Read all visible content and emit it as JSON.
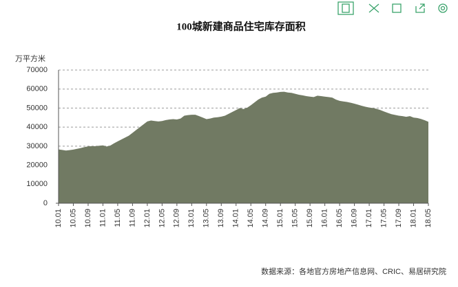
{
  "chart_data": {
    "type": "area",
    "title": "100城新建商品住宅库存面积",
    "y_label": "万平方米",
    "source": "数据来源：各地官方房地产信息网、CRIC、易居研究院",
    "color": "#717a63",
    "categories": [
      "10.01",
      null,
      null,
      null,
      "10.05",
      null,
      null,
      null,
      "10.09",
      null,
      null,
      null,
      "11.01",
      null,
      null,
      null,
      "11.05",
      null,
      null,
      null,
      "11.09",
      null,
      null,
      null,
      "12.01",
      null,
      null,
      null,
      "12.05",
      null,
      null,
      null,
      "12.09",
      null,
      null,
      null,
      "13.01",
      null,
      null,
      null,
      "13.05",
      null,
      null,
      null,
      "13.09",
      null,
      null,
      null,
      "14.01",
      null,
      null,
      null,
      "14.05",
      null,
      null,
      null,
      "14.09",
      null,
      null,
      null,
      "15.01",
      null,
      null,
      null,
      "15.05",
      null,
      null,
      null,
      "15.09",
      null,
      null,
      null,
      "16.01",
      null,
      null,
      null,
      "16.05",
      null,
      null,
      null,
      "16.09",
      null,
      null,
      null,
      "17.01",
      null,
      null,
      null,
      "17.05",
      null,
      null,
      null,
      "17.09",
      null,
      null,
      null,
      "18.01",
      null,
      null,
      null,
      "18.05"
    ],
    "values": [
      28300,
      28000,
      27700,
      27900,
      28200,
      28600,
      29000,
      29500,
      29900,
      30000,
      30000,
      30200,
      30400,
      29800,
      30300,
      31500,
      32500,
      33500,
      34500,
      35500,
      37000,
      38500,
      40000,
      41500,
      43000,
      43500,
      43200,
      43000,
      43200,
      43700,
      44000,
      44200,
      44000,
      44500,
      46000,
      46300,
      46500,
      46500,
      45800,
      45000,
      44200,
      44500,
      45000,
      45200,
      45500,
      46000,
      47000,
      48000,
      49000,
      50000,
      49500,
      50200,
      51500,
      53000,
      54500,
      55500,
      56000,
      57500,
      58000,
      58200,
      58500,
      58600,
      58200,
      58000,
      57500,
      57000,
      56700,
      56300,
      56000,
      55800,
      56500,
      56300,
      56000,
      55800,
      55500,
      54500,
      53800,
      53500,
      53200,
      52800,
      52300,
      51800,
      51200,
      50700,
      50300,
      50000,
      49600,
      49000,
      48200,
      47500,
      46800,
      46400,
      46000,
      45800,
      45400,
      45800,
      45000,
      44800,
      44300,
      43600,
      42800
    ],
    "ylim": [
      0,
      70000
    ],
    "yticks": [
      0,
      10000,
      20000,
      30000,
      40000,
      50000,
      60000,
      70000
    ],
    "grid": true
  }
}
